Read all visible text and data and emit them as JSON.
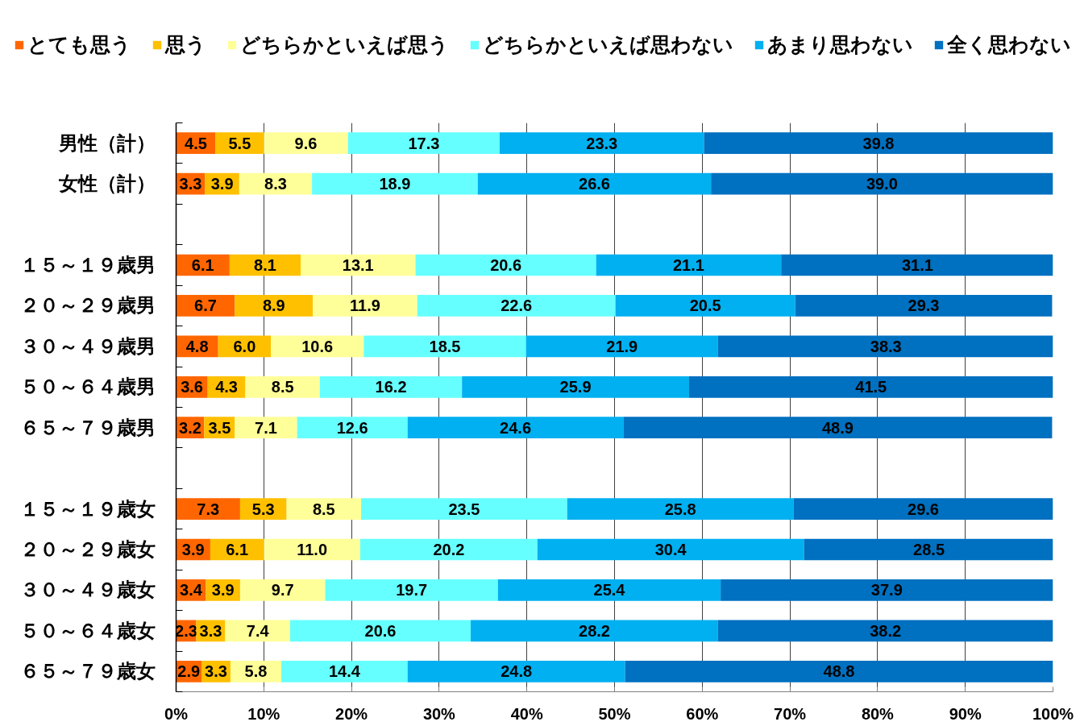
{
  "chart_data": {
    "type": "bar",
    "orientation": "horizontal",
    "stacked": true,
    "categories": [
      "男性（計）",
      "女性（計）",
      null,
      "１５～１９歳男",
      "２０～２９歳男",
      "３０～４９歳男",
      "５０～６４歳男",
      "６５～７９歳男",
      null,
      "１５～１９歳女",
      "２０～２９歳女",
      "３０～４９歳女",
      "５０～６４歳女",
      "６５～７９歳女"
    ],
    "series": [
      {
        "name": "とても思う",
        "color": "#ff6600",
        "values": [
          4.5,
          3.3,
          null,
          6.1,
          6.7,
          4.8,
          3.6,
          3.2,
          null,
          7.3,
          3.9,
          3.4,
          2.3,
          2.9
        ],
        "value_labels": [
          "4.5",
          "3.3",
          null,
          "6.1",
          "6.7",
          "4.8",
          "3.6",
          "3.2",
          null,
          "7.3",
          "3.9",
          "3.4",
          "2.3",
          "2.9"
        ]
      },
      {
        "name": "思う",
        "color": "#ffc000",
        "values": [
          5.5,
          3.9,
          null,
          8.1,
          8.9,
          6.0,
          4.3,
          3.5,
          null,
          5.3,
          6.1,
          3.9,
          3.3,
          3.3
        ],
        "value_labels": [
          "5.5",
          "3.9",
          null,
          "8.1",
          "8.9",
          "6.0",
          "4.3",
          "3.5",
          null,
          "5.3",
          "6.1",
          "3.9",
          "3.3",
          "3.3"
        ]
      },
      {
        "name": "どちらかといえば思う",
        "color": "#ffff99",
        "values": [
          9.6,
          8.3,
          null,
          13.1,
          11.9,
          10.6,
          8.5,
          7.1,
          null,
          8.5,
          11.0,
          9.7,
          7.4,
          5.8
        ],
        "value_labels": [
          "9.6",
          "8.3",
          null,
          "13.1",
          "11.9",
          "10.6",
          "8.5",
          "7.1",
          null,
          "8.5",
          "11.0",
          "9.7",
          "7.4",
          "5.8"
        ]
      },
      {
        "name": "どちらかといえば思わない",
        "color": "#66ffff",
        "values": [
          17.3,
          18.9,
          null,
          20.6,
          22.6,
          18.5,
          16.2,
          12.6,
          null,
          23.5,
          20.2,
          19.7,
          20.6,
          14.4
        ],
        "value_labels": [
          "17.3",
          "18.9",
          null,
          "20.6",
          "22.6",
          "18.5",
          "16.2",
          "12.6",
          null,
          "23.5",
          "20.2",
          "19.7",
          "20.6",
          "14.4"
        ]
      },
      {
        "name": "あまり思わない",
        "color": "#00b0f0",
        "values": [
          23.3,
          26.6,
          null,
          21.1,
          20.5,
          21.9,
          25.9,
          24.6,
          null,
          25.8,
          30.4,
          25.4,
          28.2,
          24.8
        ],
        "value_labels": [
          "23.3",
          "26.6",
          null,
          "21.1",
          "20.5",
          "21.9",
          "25.9",
          "24.6",
          null,
          "25.8",
          "30.4",
          "25.4",
          "28.2",
          "24.8"
        ]
      },
      {
        "name": "全く思わない",
        "color": "#0070c0",
        "values": [
          39.8,
          39.0,
          null,
          31.1,
          29.3,
          38.3,
          41.5,
          48.9,
          null,
          29.6,
          28.5,
          37.9,
          38.2,
          48.8
        ],
        "value_labels": [
          "39.8",
          "39.0",
          null,
          "31.1",
          "29.3",
          "38.3",
          "41.5",
          "48.9",
          null,
          "29.6",
          "28.5",
          "37.9",
          "38.2",
          "48.8"
        ]
      }
    ],
    "xlim": [
      0,
      100
    ],
    "xticks": [
      {
        "value": 0,
        "label": "0%"
      },
      {
        "value": 10,
        "label": "10%"
      },
      {
        "value": 20,
        "label": "20%"
      },
      {
        "value": 30,
        "label": "30%"
      },
      {
        "value": 40,
        "label": "40%"
      },
      {
        "value": 50,
        "label": "50%"
      },
      {
        "value": 60,
        "label": "60%"
      },
      {
        "value": 70,
        "label": "70%"
      },
      {
        "value": 80,
        "label": "80%"
      },
      {
        "value": 90,
        "label": "90%"
      },
      {
        "value": 100,
        "label": "100%"
      }
    ],
    "grid": "x",
    "legend": "top"
  }
}
